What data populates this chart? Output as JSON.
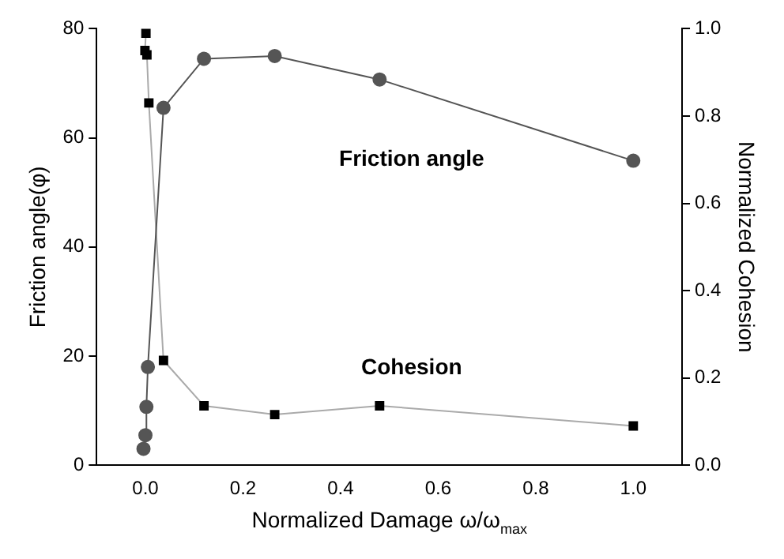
{
  "chart_data": {
    "type": "scatter",
    "xlabel": "Normalized Damage ω/ω$_{max}$",
    "ylabel": "Friction angle(φ)",
    "y2label": "Normalized Cohesion",
    "xlim": [
      -0.1,
      1.1
    ],
    "xticks": [
      {
        "value": 0,
        "label": "0.0"
      },
      0.2,
      0.4,
      0.6,
      0.8,
      {
        "value": 1,
        "label": "1.0"
      }
    ],
    "ylim": [
      0,
      80
    ],
    "yticks": [
      0,
      20,
      40,
      60,
      80
    ],
    "y2lim": [
      0,
      1
    ],
    "y2ticks": [
      {
        "value": 0,
        "label": "0.0"
      },
      0.2,
      0.4,
      0.6,
      0.8,
      {
        "value": 1,
        "label": "1.0"
      }
    ],
    "grid": false,
    "legend": false,
    "series": [
      {
        "name": "Friction angle",
        "type": "line",
        "color": "#555555",
        "marker": "circle",
        "x": [
          -0.004,
          0,
          0.002,
          0.005,
          0.037,
          0.12,
          0.265,
          0.48,
          1.0
        ],
        "values": [
          3,
          5.5,
          10.7,
          18,
          65.5,
          74.5,
          75,
          70.7,
          55.8
        ]
      },
      {
        "name": "Cohesion",
        "type": "line",
        "axis": "y2",
        "color": "#000000",
        "marker": "square",
        "x": [
          0.001,
          -0.001,
          0.003,
          0.007,
          0.037,
          0.12,
          0.265,
          0.48,
          1.0
        ],
        "values": [
          0.99,
          0.95,
          0.94,
          0.83,
          0.24,
          0.136,
          0.116,
          0.136,
          0.09
        ]
      }
    ]
  }
}
